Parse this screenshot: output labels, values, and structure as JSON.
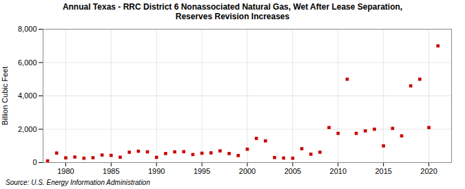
{
  "chart_data": {
    "type": "scatter",
    "title": "Annual Texas - RRC District 6 Nonassociated Natural Gas, Wet After Lease Separation,\nReserves Revision Increases",
    "y_label": "Billion Cubic Feet",
    "annotations": [
      "Source: U.S. Energy Information Administration"
    ],
    "x": [
      1978,
      1979,
      1980,
      1981,
      1982,
      1983,
      1984,
      1985,
      1986,
      1987,
      1988,
      1989,
      1990,
      1991,
      1992,
      1993,
      1994,
      1995,
      1996,
      1997,
      1998,
      1999,
      2000,
      2001,
      2002,
      2003,
      2004,
      2005,
      2006,
      2007,
      2008,
      2009,
      2010,
      2011,
      2012,
      2013,
      2014,
      2015,
      2016,
      2017,
      2018,
      2019,
      2020,
      2021
    ],
    "values": [
      100,
      570,
      280,
      330,
      260,
      290,
      450,
      430,
      320,
      620,
      680,
      640,
      310,
      540,
      640,
      650,
      480,
      560,
      580,
      700,
      540,
      420,
      800,
      1450,
      1300,
      300,
      270,
      260,
      830,
      500,
      620,
      2100,
      1750,
      5000,
      1750,
      1900,
      2000,
      1000,
      2050,
      1600,
      4600,
      5000,
      2100,
      7000
    ],
    "color": "#cc0000",
    "marker": "square",
    "xlim": [
      1977.5,
      2022.5
    ],
    "xticks": [
      1980,
      1985,
      1990,
      1995,
      2000,
      2005,
      2010,
      2015,
      2020
    ],
    "ylim": [
      0,
      8000
    ],
    "yticks": [
      0,
      {
        "value": 2000,
        "label": "2,000"
      },
      {
        "value": 4000,
        "label": "4,000"
      },
      {
        "value": 6000,
        "label": "6,000"
      },
      {
        "value": 8000,
        "label": "8,000"
      }
    ],
    "grid": true
  }
}
